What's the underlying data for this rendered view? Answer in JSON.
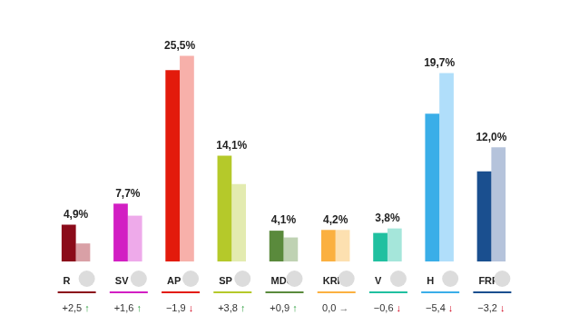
{
  "chart_data": {
    "type": "bar",
    "categories": [
      "R",
      "SV",
      "AP",
      "SP",
      "MDG",
      "KRF",
      "V",
      "H",
      "FRP"
    ],
    "series": [
      {
        "values": [
          4.9,
          7.7,
          25.5,
          14.1,
          4.1,
          4.2,
          3.8,
          19.7,
          12.0
        ],
        "value_labels": [
          "4,9%",
          "7,7%",
          "25,5%",
          "14,1%",
          "4,1%",
          "4,2%",
          "3,8%",
          "19,7%",
          "12,0%"
        ],
        "colors": [
          "#8b0b1a",
          "#d21fc3",
          "#e31b0c",
          "#b5c92a",
          "#5a8a3c",
          "#fbb040",
          "#20c0a0",
          "#3aaee8",
          "#1a4f8f"
        ]
      },
      {
        "values": [
          2.4,
          6.1,
          27.4,
          10.3,
          3.2,
          4.2,
          4.4,
          25.1,
          15.2
        ],
        "colors": [
          "#d9a0a6",
          "#eeaaea",
          "#f7b0aa",
          "#e3ebb0",
          "#bfd2b3",
          "#fde0b0",
          "#a5e6da",
          "#b0defa",
          "#b5c3db"
        ]
      }
    ],
    "change_labels": [
      "+2,5 ↑",
      "+1,6 ↑",
      "−1,9 ↓",
      "+3,8 ↑",
      "+0,9 ↑",
      "0,0 →",
      "−0,6 ↓",
      "−5,4 ↓",
      "−3,2 ↓"
    ],
    "ylim": [
      0,
      30
    ],
    "data_labels": true,
    "tick_labels": false,
    "grid": false
  }
}
